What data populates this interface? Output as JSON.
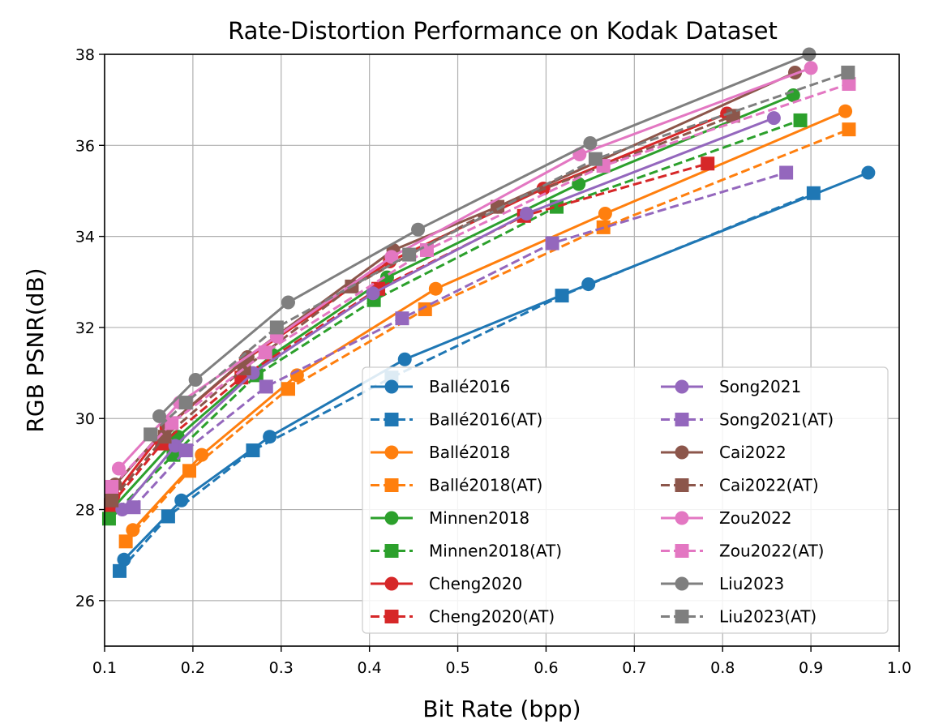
{
  "chart_data": {
    "type": "line",
    "title": "Rate-Distortion Performance on Kodak Dataset",
    "xlabel": "Bit Rate (bpp)",
    "ylabel": "RGB PSNR(dB)",
    "xlim": [
      0.1,
      1.0
    ],
    "ylim": [
      25,
      38
    ],
    "xticks": [
      0.1,
      0.2,
      0.3,
      0.4,
      0.5,
      0.6,
      0.7,
      0.8,
      0.9,
      1.0
    ],
    "xtick_labels": [
      "0.1",
      "0.2",
      "0.3",
      "0.4",
      "0.5",
      "0.6",
      "0.7",
      "0.8",
      "0.9",
      "1.0"
    ],
    "yticks": [
      26,
      28,
      30,
      32,
      34,
      36,
      38
    ],
    "ytick_labels": [
      "26",
      "28",
      "30",
      "32",
      "34",
      "36",
      "38"
    ],
    "grid": true,
    "legend_position": "lower-right",
    "legend_columns": 2,
    "series": [
      {
        "name": "Ballé2016",
        "color": "#1f77b4",
        "style": "solid",
        "marker": "circle",
        "x": [
          0.122,
          0.187,
          0.287,
          0.44,
          0.648,
          0.965
        ],
        "y": [
          26.9,
          28.2,
          29.6,
          31.3,
          32.95,
          35.4
        ]
      },
      {
        "name": "Ballé2016(AT)",
        "color": "#1f77b4",
        "style": "dashed",
        "marker": "square",
        "x": [
          0.117,
          0.172,
          0.268,
          0.425,
          0.618,
          0.903
        ],
        "y": [
          26.65,
          27.85,
          29.3,
          30.9,
          32.7,
          34.95
        ]
      },
      {
        "name": "Ballé2018",
        "color": "#ff7f0e",
        "style": "solid",
        "marker": "circle",
        "x": [
          0.132,
          0.21,
          0.318,
          0.475,
          0.667,
          0.939
        ],
        "y": [
          27.55,
          29.2,
          30.95,
          32.85,
          34.5,
          36.75
        ]
      },
      {
        "name": "Ballé2018(AT)",
        "color": "#ff7f0e",
        "style": "dashed",
        "marker": "square",
        "x": [
          0.124,
          0.196,
          0.308,
          0.463,
          0.665,
          0.943
        ],
        "y": [
          27.3,
          28.85,
          30.65,
          32.4,
          34.2,
          36.35
        ]
      },
      {
        "name": "Minnen2018",
        "color": "#2ca02c",
        "style": "solid",
        "marker": "circle",
        "x": [
          0.108,
          0.183,
          0.29,
          0.42,
          0.637,
          0.88
        ],
        "y": [
          28.0,
          29.6,
          31.4,
          33.1,
          35.15,
          37.1
        ]
      },
      {
        "name": "Minnen2018(AT)",
        "color": "#2ca02c",
        "style": "dashed",
        "marker": "square",
        "x": [
          0.105,
          0.178,
          0.272,
          0.405,
          0.612,
          0.888
        ],
        "y": [
          27.8,
          29.2,
          30.95,
          32.6,
          34.65,
          36.55
        ]
      },
      {
        "name": "Cheng2020",
        "color": "#d62728",
        "style": "solid",
        "marker": "circle",
        "x": [
          0.11,
          0.17,
          0.26,
          0.423,
          0.597,
          0.805
        ],
        "y": [
          28.3,
          29.8,
          31.3,
          33.45,
          35.05,
          36.7
        ]
      },
      {
        "name": "Cheng2020(AT)",
        "color": "#d62728",
        "style": "dashed",
        "marker": "square",
        "x": [
          0.107,
          0.165,
          0.255,
          0.41,
          0.575,
          0.783
        ],
        "y": [
          28.1,
          29.45,
          30.9,
          32.85,
          34.45,
          35.6
        ]
      },
      {
        "name": "Song2021",
        "color": "#9467bd",
        "style": "solid",
        "marker": "circle",
        "x": [
          0.12,
          0.18,
          0.268,
          0.404,
          0.578,
          0.858
        ],
        "y": [
          28.0,
          29.4,
          31.0,
          32.75,
          34.5,
          36.6
        ]
      },
      {
        "name": "Song2021(AT)",
        "color": "#9467bd",
        "style": "dashed",
        "marker": "square",
        "x": [
          0.133,
          0.192,
          0.283,
          0.437,
          0.607,
          0.872
        ],
        "y": [
          28.05,
          29.3,
          30.7,
          32.2,
          33.85,
          35.4
        ]
      },
      {
        "name": "Cai2022",
        "color": "#8c564b",
        "style": "solid",
        "marker": "circle",
        "x": [
          0.112,
          0.172,
          0.262,
          0.427,
          0.545,
          0.882
        ],
        "y": [
          28.55,
          29.85,
          31.35,
          33.7,
          34.65,
          37.6
        ]
      },
      {
        "name": "Cai2022(AT)",
        "color": "#8c564b",
        "style": "dashed",
        "marker": "square",
        "x": [
          0.108,
          0.168,
          0.258,
          0.38,
          0.545,
          0.812
        ],
        "y": [
          28.2,
          29.6,
          31.1,
          32.9,
          34.65,
          36.65
        ]
      },
      {
        "name": "Zou2022",
        "color": "#e377c2",
        "style": "solid",
        "marker": "circle",
        "x": [
          0.116,
          0.185,
          0.295,
          0.425,
          0.638,
          0.9
        ],
        "y": [
          28.9,
          30.35,
          31.8,
          33.55,
          35.8,
          37.7
        ]
      },
      {
        "name": "Zou2022(AT)",
        "color": "#e377c2",
        "style": "dashed",
        "marker": "square",
        "x": [
          0.108,
          0.176,
          0.282,
          0.465,
          0.665,
          0.943
        ],
        "y": [
          28.5,
          29.9,
          31.45,
          33.7,
          35.55,
          37.35
        ]
      },
      {
        "name": "Liu2023",
        "color": "#7f7f7f",
        "style": "solid",
        "marker": "circle",
        "x": [
          0.162,
          0.203,
          0.308,
          0.455,
          0.65,
          0.898
        ],
        "y": [
          30.05,
          30.85,
          32.55,
          34.15,
          36.05,
          38.0
        ]
      },
      {
        "name": "Liu2023(AT)",
        "color": "#7f7f7f",
        "style": "dashed",
        "marker": "square",
        "x": [
          0.152,
          0.192,
          0.295,
          0.445,
          0.656,
          0.942
        ],
        "y": [
          29.65,
          30.35,
          32.0,
          33.6,
          35.7,
          37.6
        ]
      }
    ]
  }
}
